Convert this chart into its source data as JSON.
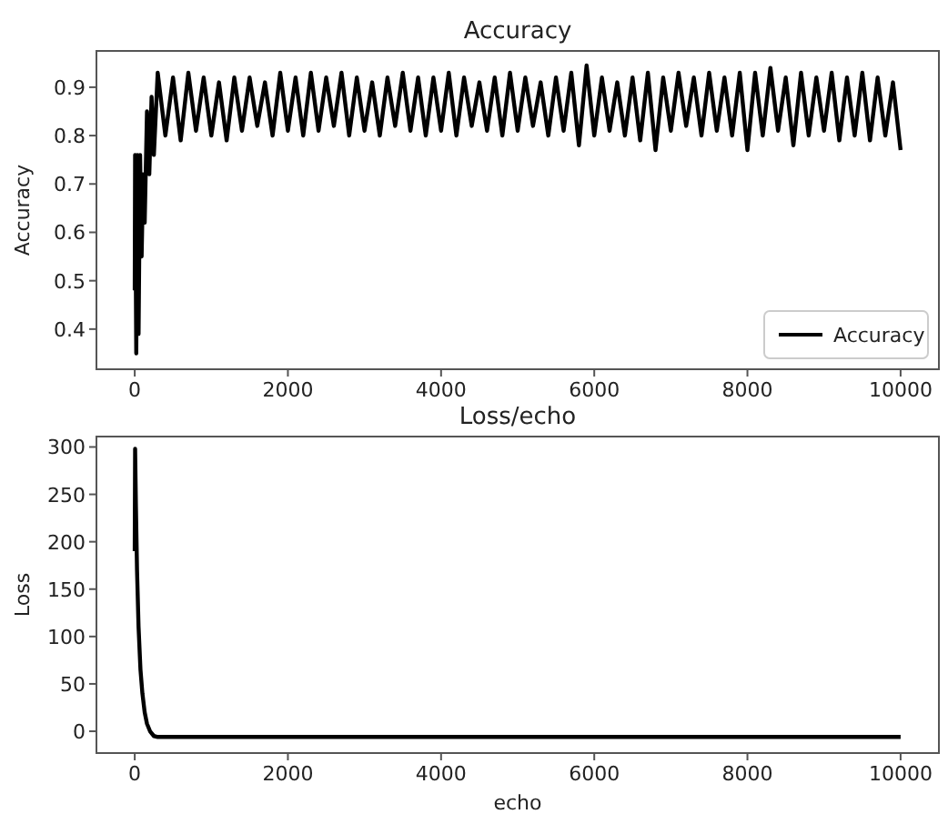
{
  "chart_data": [
    {
      "type": "line",
      "title": "Accuracy",
      "ylabel": "Accuracy",
      "legend": "bottom right",
      "xlim": [
        -500,
        10500
      ],
      "ylim": [
        0.317,
        0.975
      ],
      "xticks": [
        0,
        2000,
        4000,
        6000,
        8000,
        10000
      ],
      "yticks": [
        0.4,
        0.5,
        0.6,
        0.7,
        0.8,
        0.9
      ],
      "x": [
        0,
        5,
        20,
        35,
        50,
        70,
        90,
        110,
        130,
        160,
        190,
        220,
        250,
        300,
        400,
        500,
        600,
        700,
        800,
        900,
        1000,
        1100,
        1200,
        1300,
        1400,
        1500,
        1600,
        1700,
        1800,
        1900,
        2000,
        2100,
        2200,
        2300,
        2400,
        2500,
        2600,
        2700,
        2800,
        2900,
        3000,
        3100,
        3200,
        3300,
        3400,
        3500,
        3600,
        3700,
        3800,
        3900,
        4000,
        4100,
        4200,
        4300,
        4400,
        4500,
        4600,
        4700,
        4800,
        4900,
        5000,
        5100,
        5200,
        5300,
        5400,
        5500,
        5600,
        5700,
        5800,
        5900,
        6000,
        6100,
        6200,
        6300,
        6400,
        6500,
        6600,
        6700,
        6800,
        6900,
        7000,
        7100,
        7200,
        7300,
        7400,
        7500,
        7600,
        7700,
        7800,
        7900,
        8000,
        8100,
        8200,
        8300,
        8400,
        8500,
        8600,
        8700,
        8800,
        8900,
        9000,
        9100,
        9200,
        9300,
        9400,
        9500,
        9600,
        9700,
        9800,
        9900,
        10000
      ],
      "series": [
        {
          "name": "Accuracy",
          "color": "#000000",
          "values": [
            0.48,
            0.76,
            0.35,
            0.76,
            0.39,
            0.76,
            0.55,
            0.72,
            0.62,
            0.85,
            0.72,
            0.88,
            0.76,
            0.93,
            0.8,
            0.92,
            0.79,
            0.93,
            0.81,
            0.92,
            0.8,
            0.91,
            0.79,
            0.92,
            0.81,
            0.92,
            0.82,
            0.91,
            0.8,
            0.93,
            0.81,
            0.92,
            0.8,
            0.93,
            0.81,
            0.92,
            0.82,
            0.93,
            0.8,
            0.92,
            0.81,
            0.91,
            0.8,
            0.92,
            0.82,
            0.93,
            0.81,
            0.92,
            0.8,
            0.92,
            0.81,
            0.93,
            0.8,
            0.92,
            0.82,
            0.91,
            0.81,
            0.92,
            0.8,
            0.93,
            0.81,
            0.92,
            0.82,
            0.91,
            0.8,
            0.92,
            0.81,
            0.93,
            0.78,
            0.945,
            0.8,
            0.92,
            0.81,
            0.91,
            0.8,
            0.92,
            0.79,
            0.93,
            0.77,
            0.92,
            0.81,
            0.93,
            0.82,
            0.92,
            0.8,
            0.93,
            0.81,
            0.92,
            0.8,
            0.93,
            0.77,
            0.93,
            0.8,
            0.94,
            0.81,
            0.92,
            0.78,
            0.93,
            0.8,
            0.92,
            0.81,
            0.93,
            0.79,
            0.92,
            0.8,
            0.93,
            0.79,
            0.92,
            0.8,
            0.91,
            0.77
          ]
        }
      ]
    },
    {
      "type": "line",
      "title": "Loss/echo",
      "xlabel": "echo",
      "ylabel": "Loss",
      "xlim": [
        -500,
        10500
      ],
      "ylim": [
        -23,
        311
      ],
      "xticks": [
        0,
        2000,
        4000,
        6000,
        8000,
        10000
      ],
      "yticks": [
        0,
        50,
        100,
        150,
        200,
        250,
        300
      ],
      "x": [
        0,
        5,
        15,
        30,
        50,
        75,
        100,
        130,
        160,
        200,
        250,
        300,
        5000,
        10000
      ],
      "series": [
        {
          "color": "#000000",
          "values": [
            190,
            298,
            240,
            170,
            110,
            65,
            40,
            20,
            8,
            0,
            -5,
            -6,
            -6,
            -6
          ]
        }
      ]
    }
  ]
}
